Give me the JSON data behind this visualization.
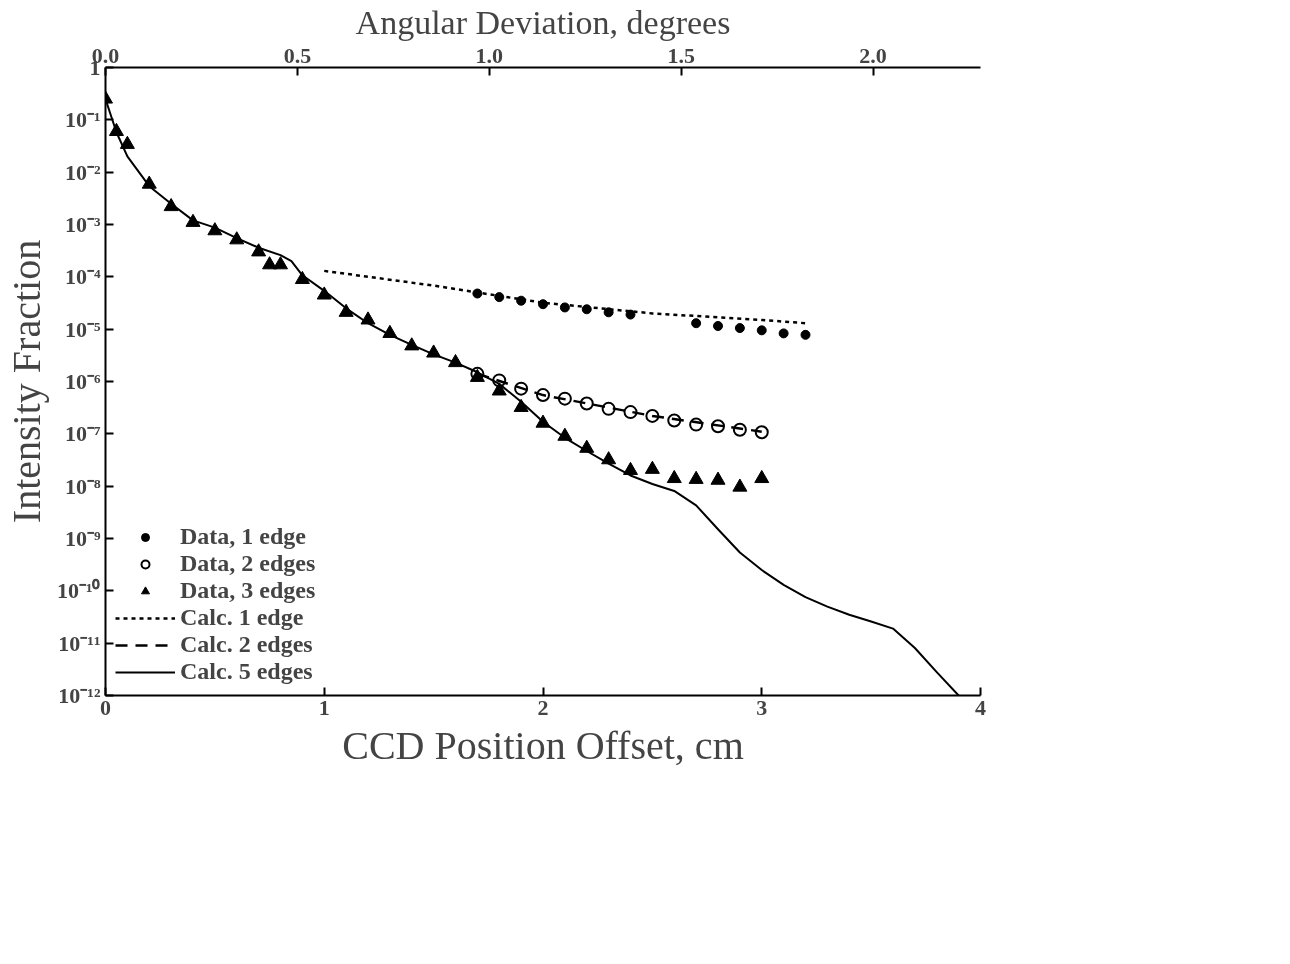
{
  "chart_data": {
    "type": "line",
    "xlabel": "CCD Position Offset, cm",
    "ylabel": "Intensity Fraction",
    "x2label": "Angular Deviation, degrees",
    "log": "y",
    "grid": false,
    "legend": "bottom left",
    "xlim": [
      0,
      4
    ],
    "xticks": [
      0,
      1,
      2,
      3,
      4
    ],
    "x2lim": [
      0,
      2.28
    ],
    "x2ticks": [
      {
        "value": 0,
        "label": "0.0"
      },
      {
        "value": 0.5,
        "label": "0.5"
      },
      {
        "value": 1,
        "label": "1.0"
      },
      {
        "value": 1.5,
        "label": "1.5"
      },
      {
        "value": 2,
        "label": "2.0"
      }
    ],
    "ylim": [
      1e-12,
      1
    ],
    "yticks": [
      {
        "value": 1,
        "label": "1"
      },
      {
        "value": 0.1,
        "label": "10⁻¹"
      },
      {
        "value": 0.01,
        "label": "10⁻²"
      },
      {
        "value": 0.001,
        "label": "10⁻³"
      },
      {
        "value": 0.0001,
        "label": "10⁻⁴"
      },
      {
        "value": 1e-05,
        "label": "10⁻⁵"
      },
      {
        "value": 1e-06,
        "label": "10⁻⁶"
      },
      {
        "value": 1e-07,
        "label": "10⁻⁷"
      },
      {
        "value": 1e-08,
        "label": "10⁻⁸"
      },
      {
        "value": 1e-09,
        "label": "10⁻⁹"
      },
      {
        "value": 1e-10,
        "label": "10⁻¹⁰"
      },
      {
        "value": 1e-11,
        "label": "10⁻¹¹"
      },
      {
        "value": 1e-12,
        "label": "10⁻¹²"
      }
    ],
    "series": [
      {
        "name": "Data, 1 edge",
        "type": "scatter",
        "marker": "circle",
        "color": "#000000",
        "x": [
          1.7,
          1.8,
          1.9,
          2.0,
          2.1,
          2.2,
          2.3,
          2.4,
          2.7,
          2.8,
          2.9,
          3.0,
          3.1,
          3.2
        ],
        "values": [
          4.8e-05,
          4.1e-05,
          3.5e-05,
          3e-05,
          2.6e-05,
          2.4e-05,
          2.1e-05,
          1.9e-05,
          1.3e-05,
          1.15e-05,
          1.05e-05,
          9.5e-06,
          8.3e-06,
          7.8e-06
        ]
      },
      {
        "name": "Data, 2 edges",
        "type": "scatter",
        "marker": "open circle",
        "color": "#000000",
        "x": [
          1.7,
          1.8,
          1.9,
          2.0,
          2.1,
          2.2,
          2.3,
          2.4,
          2.5,
          2.6,
          2.7,
          2.8,
          2.9,
          3.0
        ],
        "values": [
          1.4e-06,
          1.05e-06,
          7.3e-07,
          5.5e-07,
          4.7e-07,
          3.8e-07,
          3e-07,
          2.6e-07,
          2.2e-07,
          1.8e-07,
          1.5e-07,
          1.4e-07,
          1.2e-07,
          1.07e-07
        ]
      },
      {
        "name": "Data, 3 edges",
        "type": "scatter",
        "marker": "triangle",
        "color": "#000000",
        "x": [
          0,
          0.05,
          0.1,
          0.2,
          0.3,
          0.4,
          0.5,
          0.6,
          0.7,
          0.75,
          0.8,
          0.9,
          1.0,
          1.1,
          1.2,
          1.3,
          1.4,
          1.5,
          1.6,
          1.7,
          1.8,
          1.9,
          2.0,
          2.1,
          2.2,
          2.3,
          2.4,
          2.5,
          2.6,
          2.7,
          2.8,
          2.9,
          3.0
        ],
        "values": [
          0.25,
          0.06,
          0.034,
          0.0059,
          0.0022,
          0.0011,
          0.00076,
          0.00051,
          0.0003,
          0.00017,
          0.00017,
          8.9e-05,
          4.5e-05,
          2.1e-05,
          1.5e-05,
          8.3e-06,
          4.8e-06,
          3.5e-06,
          2.3e-06,
          1.2e-06,
          6.6e-07,
          3.2e-07,
          1.6e-07,
          9e-08,
          5.3e-08,
          3.2e-08,
          2e-08,
          2.1e-08,
          1.4e-08,
          1.35e-08,
          1.3e-08,
          9.6e-09,
          1.4e-08
        ]
      },
      {
        "name": "Calc. 1 edge",
        "line_style": "dotted",
        "color": "#000000",
        "x": [
          1.0,
          1.5,
          2.0,
          2.5,
          3.0,
          3.2
        ],
        "values": [
          0.00013,
          6.8e-05,
          3.2e-05,
          2e-05,
          1.5e-05,
          1.3e-05
        ]
      },
      {
        "name": "Calc. 2 edges",
        "line_style": "dashed",
        "color": "#000000",
        "x": [
          1.7,
          2.0,
          2.5,
          3.0
        ],
        "values": [
          1.4e-06,
          5.5e-07,
          2.2e-07,
          1.1e-07
        ]
      },
      {
        "name": "Calc. 5 edges",
        "line_style": "solid",
        "color": "#000000",
        "x": [
          0,
          0.05,
          0.1,
          0.2,
          0.3,
          0.4,
          0.5,
          0.6,
          0.7,
          0.8,
          0.85,
          0.9,
          1.0,
          1.1,
          1.2,
          1.3,
          1.4,
          1.5,
          1.6,
          1.7,
          1.8,
          1.9,
          2.0,
          2.1,
          2.2,
          2.3,
          2.4,
          2.5,
          2.6,
          2.7,
          2.8,
          2.9,
          3.0,
          3.1,
          3.2,
          3.3,
          3.4,
          3.5,
          3.6,
          3.7,
          3.8,
          3.9
        ],
        "values": [
          0.25,
          0.058,
          0.02,
          0.0054,
          0.0025,
          0.0012,
          0.00087,
          0.00055,
          0.00036,
          0.00026,
          0.0002,
          0.000107,
          5.4e-05,
          2.5e-05,
          1.3e-05,
          7.8e-06,
          5e-06,
          3.3e-06,
          2.3e-06,
          1.5e-06,
          9e-07,
          4.1e-07,
          1.7e-07,
          8.4e-08,
          4.7e-08,
          2.7e-08,
          1.6e-08,
          1.1e-08,
          8.1e-09,
          4.3e-09,
          1.5e-09,
          5.4e-10,
          2.5e-10,
          1.3e-10,
          7.6e-11,
          5e-11,
          3.5e-11,
          2.6e-11,
          1.9e-11,
          8.1e-12,
          2.8e-12,
          1e-12
        ]
      }
    ]
  }
}
